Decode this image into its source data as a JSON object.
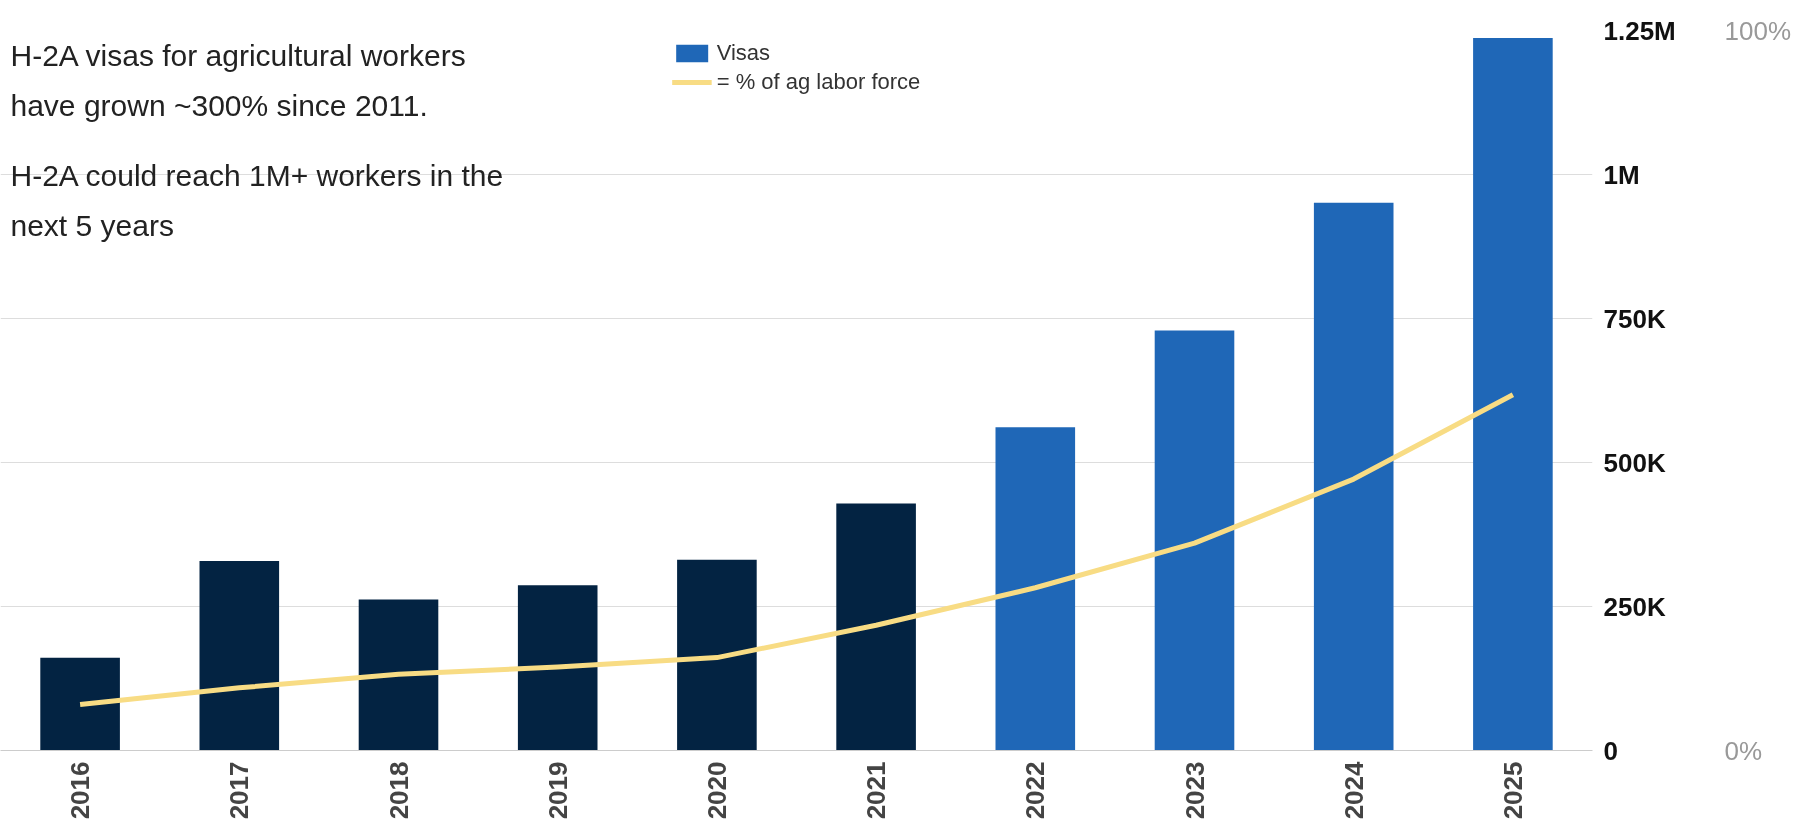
{
  "chart_data": {
    "type": "bar",
    "categories": [
      "2016",
      "2017",
      "2018",
      "2019",
      "2020",
      "2021",
      "2022",
      "2023",
      "2024",
      "2025"
    ],
    "series": [
      {
        "name": "Visas",
        "colors": [
          "#032342",
          "#032342",
          "#032342",
          "#032342",
          "#032342",
          "#032342",
          "#1f67b7",
          "#1f67b7",
          "#1f67b7",
          "#1f67b7"
        ],
        "values": [
          161000,
          329000,
          262000,
          287000,
          331000,
          429000,
          561000,
          729000,
          951000,
          1237000
        ]
      },
      {
        "name": "= % of ag labor force",
        "type": "line",
        "axis": "y2",
        "color": "#f8dc84",
        "values": [
          6.4,
          8.7,
          10.6,
          11.6,
          12.9,
          17.4,
          22.6,
          28.8,
          37.7,
          49.4
        ]
      }
    ],
    "ylim": [
      0,
      1250000
    ],
    "yticks": [
      {
        "value": 0,
        "label": "0"
      },
      {
        "value": 250000,
        "label": "250K"
      },
      {
        "value": 500000,
        "label": "500K"
      },
      {
        "value": 750000,
        "label": "750K"
      },
      {
        "value": 1000000,
        "label": "1M"
      },
      {
        "value": 1250000,
        "label": "1.25M"
      }
    ],
    "y2lim": [
      0,
      100
    ],
    "y2ticks": [
      {
        "value": 0,
        "label": "0%"
      },
      {
        "value": 100,
        "label": "100%"
      }
    ],
    "grid": "y",
    "legend": "top",
    "line_style": "solid",
    "marker": "none",
    "annotations": [
      "H-2A visas for agricultural workers have grown ~300% since 2011.",
      "H-2A could reach 1M+ workers in the next 5 years"
    ]
  }
}
